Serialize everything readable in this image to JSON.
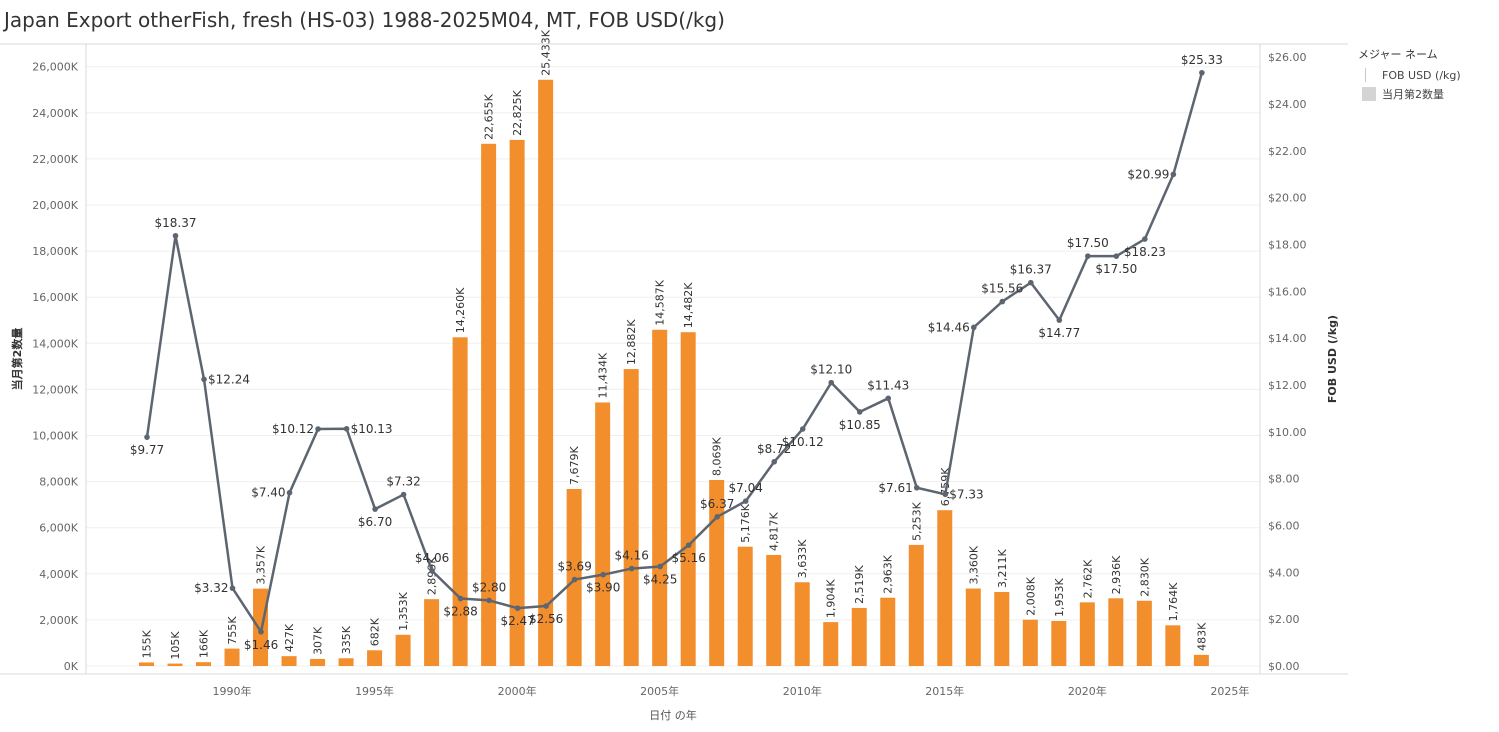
{
  "title": "Japan Export otherFish, fresh (HS-03) 1988-2025M04, MT, FOB USD(/kg)",
  "legend": {
    "title": "メジャー ネーム",
    "items": [
      {
        "label": "FOB USD (/kg)",
        "kind": "line"
      },
      {
        "label": "当月第2数量",
        "kind": "box"
      }
    ]
  },
  "chart_data": {
    "type": "bar",
    "title": "Japan Export otherFish, fresh (HS-03) 1988-2025M04, MT, FOB USD(/kg)",
    "xlabel": "日付 の年",
    "ylabel": "当月第2数量",
    "y2label": "FOB USD (/kg)",
    "ylim": [
      0,
      26500
    ],
    "y2lim": [
      0,
      26.5
    ],
    "ticks_left": [
      "0K",
      "2,000K",
      "4,000K",
      "6,000K",
      "8,000K",
      "10,000K",
      "12,000K",
      "14,000K",
      "16,000K",
      "18,000K",
      "20,000K",
      "22,000K",
      "24,000K",
      "26,000K"
    ],
    "ticks_left_values": [
      0,
      2000,
      4000,
      6000,
      8000,
      10000,
      12000,
      14000,
      16000,
      18000,
      20000,
      22000,
      24000,
      26000
    ],
    "ticks_right": [
      "$0.00",
      "$2.00",
      "$4.00",
      "$6.00",
      "$8.00",
      "$10.00",
      "$12.00",
      "$14.00",
      "$16.00",
      "$18.00",
      "$20.00",
      "$22.00",
      "$24.00",
      "$26.00"
    ],
    "ticks_right_values": [
      0,
      2,
      4,
      6,
      8,
      10,
      12,
      14,
      16,
      18,
      20,
      22,
      24,
      26
    ],
    "x_ticks": [
      {
        "year": 1990,
        "label": "1990年"
      },
      {
        "year": 1995,
        "label": "1995年"
      },
      {
        "year": 2000,
        "label": "2000年"
      },
      {
        "year": 2005,
        "label": "2005年"
      },
      {
        "year": 2010,
        "label": "2010年"
      },
      {
        "year": 2015,
        "label": "2015年"
      },
      {
        "year": 2020,
        "label": "2020年"
      },
      {
        "year": 2025,
        "label": "2025年"
      }
    ],
    "years": [
      1988,
      1989,
      1990,
      1991,
      1992,
      1993,
      1994,
      1995,
      1996,
      1997,
      1998,
      1999,
      2000,
      2001,
      2002,
      2003,
      2004,
      2005,
      2006,
      2007,
      2008,
      2009,
      2010,
      2011,
      2012,
      2013,
      2014,
      2015,
      2016,
      2017,
      2018,
      2019,
      2020,
      2021,
      2022,
      2023,
      2024,
      2025
    ],
    "series": [
      {
        "name": "当月第2数量",
        "color": "#f28e2b",
        "values": [
          155,
          105,
          166,
          755,
          3357,
          427,
          307,
          335,
          682,
          1353,
          2899,
          14260,
          22655,
          22825,
          25433,
          7679,
          11434,
          12882,
          14587,
          14482,
          8069,
          5176,
          4817,
          3633,
          1904,
          2519,
          2963,
          5253,
          6759,
          3360,
          3211,
          2008,
          1953,
          2762,
          2936,
          2830,
          1764,
          483
        ],
        "labels": [
          "155K",
          "105K",
          "166K",
          "755K",
          "3,357K",
          "427K",
          "307K",
          "335K",
          "682K",
          "1,353K",
          "2,899K",
          "14,260K",
          "22,655K",
          "22,825K",
          "25,433K",
          "7,679K",
          "11,434K",
          "12,882K",
          "14,587K",
          "14,482K",
          "8,069K",
          "5,176K",
          "4,817K",
          "3,633K",
          "1,904K",
          "2,519K",
          "2,963K",
          "5,253K",
          "6,759K",
          "3,360K",
          "3,211K",
          "2,008K",
          "1,953K",
          "2,762K",
          "2,936K",
          "2,830K",
          "1,764K",
          "483K"
        ]
      },
      {
        "name": "FOB USD (/kg)",
        "color": "#5d6670",
        "values": [
          9.77,
          18.37,
          12.24,
          3.32,
          1.46,
          7.4,
          10.12,
          10.13,
          6.7,
          7.32,
          4.06,
          2.88,
          2.8,
          2.47,
          2.56,
          3.69,
          3.9,
          4.16,
          4.25,
          5.16,
          6.37,
          7.04,
          8.72,
          10.12,
          12.1,
          10.85,
          11.43,
          7.61,
          7.33,
          14.46,
          15.56,
          16.37,
          14.77,
          17.5,
          17.5,
          18.23,
          20.99,
          25.33
        ],
        "labels": [
          "$9.77",
          "$18.37",
          "$12.24",
          "$3.32",
          "$1.46",
          "$7.40",
          "$10.12",
          "$10.13",
          "$6.70",
          "$7.32",
          "$4.06",
          "$2.88",
          "$2.80",
          "$2.47",
          "$2.56",
          "$3.69",
          "$3.90",
          "$4.16",
          "$4.25",
          "$5.16",
          "$6.37",
          "$7.04",
          "$8.72",
          "$10.12",
          "$12.10",
          "$10.85",
          "$11.43",
          "$7.61",
          "$7.33",
          "$14.46",
          "$15.56",
          "$16.37",
          "$14.77",
          "$17.50",
          "$17.50",
          "$18.23",
          "$20.99",
          "$25.33"
        ]
      }
    ]
  }
}
